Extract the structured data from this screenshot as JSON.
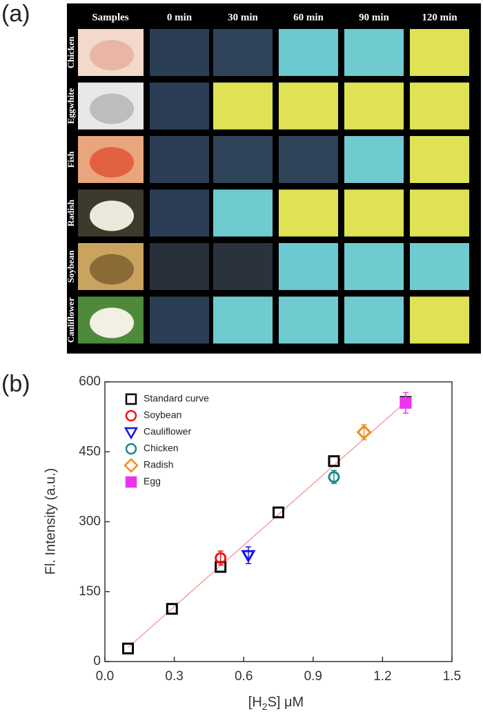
{
  "panel_a": {
    "label": "(a)",
    "header": [
      "Samples",
      "0 min",
      "30 min",
      "60 min",
      "90 min",
      "120 min"
    ],
    "rows": [
      {
        "name": "Chicken",
        "cells": [
          "#2b3e55",
          "#2f4459",
          "#6cc9cf",
          "#6fcbd0",
          "#dfe255"
        ]
      },
      {
        "name": "Eggwhite",
        "cells": [
          "#2b3e55",
          "#dfe255",
          "#dfe255",
          "#dfe255",
          "#dfe255"
        ]
      },
      {
        "name": "Fish",
        "cells": [
          "#2b3e55",
          "#2f4459",
          "#2f4459",
          "#6fcbd0",
          "#dfe255"
        ]
      },
      {
        "name": "Radish",
        "cells": [
          "#2b3e55",
          "#6fcbd0",
          "#dfe255",
          "#dfe255",
          "#dfe255"
        ]
      },
      {
        "name": "Soybean",
        "cells": [
          "#262f3a",
          "#2a333d",
          "#6cc9cf",
          "#6fcbd0",
          "#6fcbd0"
        ]
      },
      {
        "name": "Cauliflower",
        "cells": [
          "#2b3e55",
          "#6fcbd0",
          "#6fcbd0",
          "#6fcbd0",
          "#dfe255"
        ]
      }
    ]
  },
  "chart_data": {
    "type": "scatter",
    "panel_label": "(b)",
    "xlabel": [
      "[H",
      "2",
      "S] μM"
    ],
    "ylabel": "Fl. Intensity (a.u.)",
    "xlim": [
      0,
      1.5
    ],
    "ylim": [
      0,
      600
    ],
    "xticks": [
      {
        "value": 0,
        "label": "0.0"
      },
      0.3,
      0.6,
      0.9,
      1.2,
      1.5
    ],
    "yticks": [
      0,
      150,
      300,
      450,
      600
    ],
    "legend": "upper left",
    "fit_line": {
      "color": "#f4a0a0",
      "x": [
        0.1,
        1.3
      ],
      "y": [
        30,
        557
      ]
    },
    "series": [
      {
        "name": "Standard curve",
        "color": "#000000",
        "marker": "square",
        "filled": false,
        "x": [
          0.1,
          0.29,
          0.5,
          0.75,
          0.99,
          1.3
        ],
        "values": [
          28,
          113,
          203,
          320,
          430,
          557
        ]
      },
      {
        "name": "Soybean",
        "color": "#ee1111",
        "marker": "circle",
        "filled": false,
        "x": [
          0.5
        ],
        "values": [
          222
        ],
        "errors": [
          15
        ]
      },
      {
        "name": "Cauliflower",
        "color": "#1111ee",
        "marker": "triangle-down",
        "filled": false,
        "x": [
          0.62
        ],
        "values": [
          228
        ],
        "errors": [
          18
        ]
      },
      {
        "name": "Chicken",
        "color": "#138a8a",
        "marker": "circle",
        "filled": false,
        "x": [
          0.99
        ],
        "values": [
          396
        ],
        "errors": [
          14
        ]
      },
      {
        "name": "Radish",
        "color": "#f28c1c",
        "marker": "diamond",
        "filled": false,
        "x": [
          1.12
        ],
        "values": [
          492
        ],
        "errors": [
          16
        ]
      },
      {
        "name": "Egg",
        "color": "#ee33ee",
        "marker": "square",
        "filled": true,
        "x": [
          1.3
        ],
        "values": [
          555
        ],
        "errors": [
          22
        ]
      }
    ]
  }
}
